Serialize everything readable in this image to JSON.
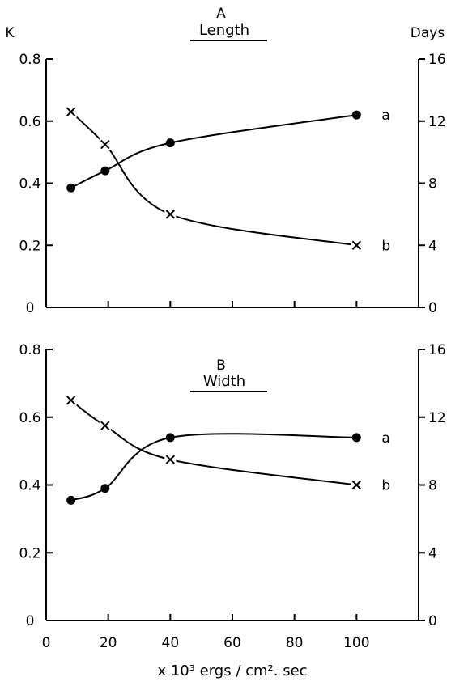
{
  "chart_data": [
    {
      "type": "line",
      "panel_letter": "A",
      "title": "Length",
      "ylabel_left": "K",
      "ylabel_right": "Days",
      "xlim": [
        0,
        120
      ],
      "ylim_left": [
        0,
        0.8
      ],
      "ylim_right": [
        0,
        16
      ],
      "yticks_left": [
        "0",
        "0.2",
        "0.4",
        "0.6",
        "0.8"
      ],
      "yticks_right": [
        "0",
        "4",
        "8",
        "12",
        "16"
      ],
      "series": [
        {
          "name": "a",
          "marker": "dot",
          "axis": "left",
          "x": [
            8,
            19,
            40,
            100
          ],
          "y": [
            0.385,
            0.44,
            0.53,
            0.62
          ]
        },
        {
          "name": "b",
          "marker": "cross",
          "axis": "right",
          "x": [
            8,
            19,
            40,
            100
          ],
          "y": [
            12.6,
            10.5,
            6.0,
            4.0
          ]
        }
      ],
      "grid": false
    },
    {
      "type": "line",
      "panel_letter": "B",
      "title": "Width",
      "ylabel_left": "",
      "ylabel_right": "",
      "xlabel": "x 10³ ergs / cm². sec",
      "xticks": [
        "0",
        "20",
        "40",
        "60",
        "80",
        "100"
      ],
      "xlim": [
        0,
        120
      ],
      "ylim_left": [
        0,
        0.8
      ],
      "ylim_right": [
        0,
        16
      ],
      "yticks_left": [
        "0",
        "0.2",
        "0.4",
        "0.6",
        "0.8"
      ],
      "yticks_right": [
        "0",
        "4",
        "8",
        "12",
        "16"
      ],
      "series": [
        {
          "name": "a",
          "marker": "dot",
          "axis": "left",
          "x": [
            8,
            19,
            40,
            100
          ],
          "y": [
            0.355,
            0.39,
            0.54,
            0.54
          ]
        },
        {
          "name": "b",
          "marker": "cross",
          "axis": "right",
          "x": [
            8,
            19,
            40,
            100
          ],
          "y": [
            13.0,
            11.5,
            9.5,
            8.0
          ]
        }
      ],
      "grid": false
    }
  ]
}
